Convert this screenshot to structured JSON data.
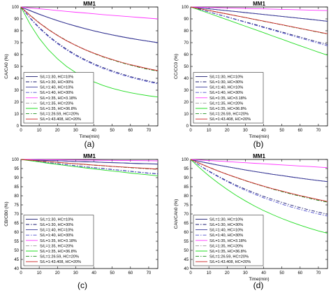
{
  "figure": {
    "panels": [
      "(a)",
      "(b)",
      "(c)",
      "(d)"
    ]
  },
  "chart_data": [
    {
      "type": "line",
      "panel_label": "(a)",
      "title": "MM1",
      "xlabel": "Time(min)",
      "ylabel": "CA/CA0 (%)",
      "xlim": [
        0,
        75
      ],
      "ylim": [
        0,
        100
      ],
      "xticks": [
        0,
        10,
        20,
        30,
        40,
        50,
        60,
        70
      ],
      "yticks": [
        0,
        10,
        20,
        30,
        40,
        50,
        60,
        70,
        80,
        90,
        100
      ],
      "grid": false,
      "legend_position": "lower-left",
      "x": [
        0,
        5,
        10,
        15,
        20,
        25,
        30,
        35,
        40,
        45,
        50,
        55,
        60,
        65,
        70,
        75
      ],
      "series": [
        {
          "name": "S/L=1:30, HC=10%",
          "color": "#1a1a6e",
          "dash": "solid",
          "values": [
            100,
            96.9,
            93.9,
            91.1,
            88.5,
            86.1,
            83.9,
            81.8,
            79.9,
            78.1,
            76.5,
            75,
            73.6,
            72.3,
            71.1,
            70
          ]
        },
        {
          "name": "S/L=1:30, HC=30%",
          "color": "#1a1a6e",
          "dash": "dashdot",
          "values": [
            100,
            90.8,
            82.8,
            75.8,
            69.8,
            64.5,
            59.8,
            55.8,
            52.2,
            49.1,
            46.3,
            43.8,
            41.5,
            39.5,
            37.7,
            36
          ]
        },
        {
          "name": "S/L=1:40, HC=10%",
          "color": "#3a3a9a",
          "dash": "solid",
          "values": [
            100,
            97,
            94,
            91.2,
            88.6,
            86.2,
            84,
            81.9,
            80,
            78.2,
            76.6,
            75.1,
            73.7,
            72.4,
            71.2,
            70
          ]
        },
        {
          "name": "S/L=1:40, HC=30%",
          "color": "#4a4acc",
          "dash": "dashdot",
          "values": [
            100,
            90.4,
            82.2,
            75.2,
            69.1,
            63.8,
            59.1,
            55.1,
            51.5,
            48.3,
            45.5,
            43,
            40.8,
            38.8,
            37,
            35.3
          ]
        },
        {
          "name": "S/L=1:35, HC=3.18%",
          "color": "#ff33ff",
          "dash": "solid",
          "values": [
            100,
            99.2,
            98.5,
            97.8,
            97,
            96.3,
            95.6,
            95,
            94.3,
            93.6,
            93,
            92.4,
            91.8,
            91.2,
            90.6,
            90
          ]
        },
        {
          "name": "S/L=1:35, HC=20%",
          "color": "#999999",
          "dash": "dashdot",
          "values": [
            100,
            93.1,
            86.9,
            81.3,
            76.3,
            71.9,
            67.9,
            64.3,
            61.1,
            58.2,
            55.6,
            53.3,
            51.2,
            49.3,
            47.6,
            46
          ]
        },
        {
          "name": "S/L=1:35, HC=36.8%",
          "color": "#22dd22",
          "dash": "solid",
          "values": [
            100,
            85.5,
            73.7,
            64.1,
            56.4,
            50,
            44.8,
            40.5,
            37,
            34,
            31.6,
            29.6,
            27.9,
            26.5,
            25.3,
            24.3
          ]
        },
        {
          "name": "S/L=1:26.59, HC=20%",
          "color": "#1f8f1f",
          "dash": "dashdot",
          "values": [
            100,
            93,
            86.7,
            81.1,
            76.1,
            71.7,
            67.7,
            64.1,
            60.9,
            58,
            55.5,
            53.2,
            51.1,
            49.2,
            47.5,
            46
          ]
        },
        {
          "name": "S/L=1:43.408, HC=20%",
          "color": "#cc2222",
          "dash": "solid",
          "values": [
            100,
            92.9,
            86.6,
            81,
            76,
            71.6,
            67.7,
            64.2,
            61.1,
            58.3,
            55.8,
            53.5,
            51.5,
            49.7,
            48,
            46.5
          ]
        }
      ]
    },
    {
      "type": "line",
      "panel_label": "(b)",
      "title": "MM1",
      "xlabel": "Time(min)",
      "ylabel": "CC/CC0 (%)",
      "xlim": [
        0,
        75
      ],
      "ylim": [
        0,
        100
      ],
      "xticks": [
        0,
        10,
        20,
        30,
        40,
        50,
        60,
        70
      ],
      "yticks": [
        0,
        10,
        20,
        30,
        40,
        50,
        60,
        70,
        80,
        90,
        100
      ],
      "grid": false,
      "legend_position": "lower-left",
      "x": [
        0,
        5,
        10,
        15,
        20,
        25,
        30,
        35,
        40,
        45,
        50,
        55,
        60,
        65,
        70,
        75
      ],
      "series": [
        {
          "name": "S/L=1:30, HC=10%",
          "color": "#1a1a6e",
          "dash": "solid",
          "values": [
            100,
            99.3,
            98.5,
            97.7,
            96.9,
            96.1,
            95.3,
            94.5,
            93.7,
            92.9,
            92.1,
            91.3,
            90.5,
            89.7,
            88.9,
            88
          ]
        },
        {
          "name": "S/L=1:30, HC=30%",
          "color": "#1a1a6e",
          "dash": "dashdot",
          "values": [
            100,
            98,
            95.9,
            93.8,
            91.7,
            89.6,
            87.5,
            85.4,
            83.2,
            81.1,
            79,
            76.8,
            74.7,
            72.6,
            70.5,
            68.5
          ]
        },
        {
          "name": "S/L=1:40, HC=10%",
          "color": "#3a3a9a",
          "dash": "solid",
          "values": [
            100,
            99.3,
            98.5,
            97.7,
            96.9,
            96.1,
            95.3,
            94.5,
            93.7,
            92.9,
            92.1,
            91.3,
            90.5,
            89.7,
            88.9,
            88
          ]
        },
        {
          "name": "S/L=1:40, HC=30%",
          "color": "#4a4acc",
          "dash": "dashdot",
          "values": [
            100,
            97.9,
            95.8,
            93.6,
            91.5,
            89.3,
            87.1,
            84.9,
            82.7,
            80.5,
            78.3,
            76.1,
            73.9,
            71.7,
            69.5,
            67.3
          ]
        },
        {
          "name": "S/L=1:35, HC=3.18%",
          "color": "#ff33ff",
          "dash": "solid",
          "values": [
            100,
            99.8,
            99.6,
            99.4,
            99.2,
            99,
            98.8,
            98.6,
            98.4,
            98.2,
            98,
            97.8,
            97.6,
            97.4,
            97.2,
            97
          ]
        },
        {
          "name": "S/L=1:35, HC=20%",
          "color": "#999999",
          "dash": "dashdot",
          "values": [
            100,
            98.6,
            97.1,
            95.6,
            94.1,
            92.6,
            91.1,
            89.5,
            88,
            86.5,
            85,
            83.4,
            81.9,
            80.4,
            78.8,
            77.3
          ]
        },
        {
          "name": "S/L=1:35, HC=36.8%",
          "color": "#22dd22",
          "dash": "solid",
          "values": [
            100,
            97.4,
            94.7,
            92,
            89.3,
            86.6,
            83.8,
            81.1,
            78.4,
            75.6,
            72.9,
            70.1,
            67.4,
            64.7,
            62,
            59.5
          ]
        },
        {
          "name": "S/L=1:26.59, HC=20%",
          "color": "#1f8f1f",
          "dash": "dashdot",
          "values": [
            100,
            98.6,
            97.1,
            95.6,
            94.1,
            92.6,
            91.1,
            89.5,
            88,
            86.5,
            85,
            83.4,
            81.9,
            80.4,
            78.8,
            77.3
          ]
        },
        {
          "name": "S/L=1:43.408, HC=20%",
          "color": "#cc2222",
          "dash": "solid",
          "values": [
            100,
            98.6,
            97.1,
            95.6,
            94.1,
            92.6,
            91.1,
            89.6,
            88.1,
            86.6,
            85.1,
            83.6,
            82,
            80.5,
            79,
            77.5
          ]
        }
      ]
    },
    {
      "type": "line",
      "panel_label": "(c)",
      "title": "MM1",
      "xlabel": "",
      "ylabel": "CB/CB0 (%)",
      "xlim": [
        0,
        75
      ],
      "ylim": [
        40,
        100
      ],
      "xticks": [
        0,
        10,
        20,
        30,
        40,
        50,
        60,
        70
      ],
      "yticks": [
        40,
        45,
        50,
        55,
        60,
        65,
        70,
        75,
        80,
        85,
        90,
        95,
        100
      ],
      "grid": false,
      "legend_position": "lower-left",
      "x": [
        0,
        5,
        10,
        15,
        20,
        25,
        30,
        35,
        40,
        45,
        50,
        55,
        60,
        65,
        70,
        75
      ],
      "series": [
        {
          "name": "S/L=1:30, HC=10%",
          "color": "#1a1a6e",
          "dash": "solid",
          "values": [
            100,
            99.8,
            99.6,
            99.4,
            99.3,
            99.1,
            98.9,
            98.7,
            98.6,
            98.4,
            98.2,
            98.1,
            97.9,
            97.7,
            97.6,
            97.4
          ]
        },
        {
          "name": "S/L=1:30, HC=30%",
          "color": "#1a1a6e",
          "dash": "dashdot",
          "values": [
            100,
            99.4,
            98.8,
            98.2,
            97.7,
            97.1,
            96.6,
            96,
            95.5,
            95,
            94.5,
            94,
            93.5,
            93,
            92.5,
            92.1
          ]
        },
        {
          "name": "S/L=1:40, HC=10%",
          "color": "#3a3a9a",
          "dash": "solid",
          "values": [
            100,
            99.8,
            99.6,
            99.4,
            99.3,
            99.1,
            98.9,
            98.8,
            98.6,
            98.4,
            98.3,
            98.1,
            97.9,
            97.8,
            97.6,
            97.5
          ]
        },
        {
          "name": "S/L=1:40, HC=30%",
          "color": "#4a4acc",
          "dash": "dashdot",
          "values": [
            100,
            99.4,
            98.8,
            98.2,
            97.6,
            97.1,
            96.5,
            95.9,
            95.4,
            94.9,
            94.4,
            93.9,
            93.4,
            92.9,
            92.4,
            92
          ]
        },
        {
          "name": "S/L=1:35, HC=3.18%",
          "color": "#ff33ff",
          "dash": "solid",
          "values": [
            100,
            99.95,
            99.9,
            99.85,
            99.8,
            99.75,
            99.7,
            99.65,
            99.6,
            99.55,
            99.5,
            99.45,
            99.4,
            99.35,
            99.3,
            99.2
          ]
        },
        {
          "name": "S/L=1:35, HC=20%",
          "color": "#999999",
          "dash": "dashdot",
          "values": [
            100,
            99.6,
            99.2,
            98.8,
            98.4,
            98,
            97.6,
            97.2,
            96.8,
            96.5,
            96.1,
            95.8,
            95.4,
            95.1,
            94.8,
            94.5
          ]
        },
        {
          "name": "S/L=1:35, HC=36.8%",
          "color": "#22dd22",
          "dash": "solid",
          "values": [
            100,
            99.3,
            98.6,
            97.9,
            97.3,
            96.6,
            96,
            95.4,
            94.8,
            94.2,
            93.6,
            93.1,
            92.5,
            92,
            91.5,
            91
          ]
        },
        {
          "name": "S/L=1:26.59, HC=20%",
          "color": "#1f8f1f",
          "dash": "dashdot",
          "values": [
            100,
            99.6,
            99.2,
            98.8,
            98.4,
            98,
            97.6,
            97.2,
            96.9,
            96.5,
            96.2,
            95.8,
            95.5,
            95.2,
            94.9,
            94.6
          ]
        },
        {
          "name": "S/L=1:43.408, HC=20%",
          "color": "#cc2222",
          "dash": "solid",
          "values": [
            100,
            99.6,
            99.2,
            98.8,
            98.4,
            98,
            97.6,
            97.3,
            96.9,
            96.6,
            96.2,
            95.9,
            95.6,
            95.3,
            95,
            94.7
          ]
        }
      ]
    },
    {
      "type": "line",
      "panel_label": "(d)",
      "title": "MM1",
      "xlabel": "Time(min)",
      "ylabel": "CAh/CAh0 (%)",
      "xlim": [
        0,
        75
      ],
      "ylim": [
        40,
        100
      ],
      "xticks": [
        0,
        10,
        20,
        30,
        40,
        50,
        60,
        70
      ],
      "yticks": [
        40,
        45,
        50,
        55,
        60,
        65,
        70,
        75,
        80,
        85,
        90,
        95,
        100
      ],
      "grid": false,
      "legend_position": "lower-left",
      "x": [
        0,
        5,
        10,
        15,
        20,
        25,
        30,
        35,
        40,
        45,
        50,
        55,
        60,
        65,
        70,
        75
      ],
      "series": [
        {
          "name": "S/L=1:30, HC=10%",
          "color": "#1a1a6e",
          "dash": "solid",
          "values": [
            100,
            98.9,
            97.9,
            96.9,
            96,
            95.1,
            94.2,
            93.4,
            92.6,
            91.8,
            91.1,
            90.4,
            89.7,
            89,
            88.4,
            87.8
          ]
        },
        {
          "name": "S/L=1:30, HC=30%",
          "color": "#1a1a6e",
          "dash": "dashdot",
          "values": [
            100,
            96.7,
            93.6,
            90.8,
            88.2,
            85.8,
            83.6,
            81.6,
            79.7,
            78,
            76.4,
            74.9,
            73.5,
            72.2,
            71,
            69.9
          ]
        },
        {
          "name": "S/L=1:40, HC=10%",
          "color": "#3a3a9a",
          "dash": "solid",
          "values": [
            100,
            98.9,
            97.9,
            96.9,
            96,
            95.1,
            94.2,
            93.4,
            92.6,
            91.8,
            91.1,
            90.4,
            89.7,
            89,
            88.4,
            87.8
          ]
        },
        {
          "name": "S/L=1:40, HC=30%",
          "color": "#4a4acc",
          "dash": "dashdot",
          "values": [
            100,
            96.6,
            93.4,
            90.5,
            87.8,
            85.3,
            83,
            80.9,
            78.9,
            77.1,
            75.4,
            73.9,
            72.5,
            71.2,
            70,
            68.9
          ]
        },
        {
          "name": "S/L=1:35, HC=3.18%",
          "color": "#ff33ff",
          "dash": "solid",
          "values": [
            100,
            99.7,
            99.4,
            99.1,
            98.8,
            98.5,
            98.2,
            97.9,
            97.6,
            97.3,
            97,
            96.7,
            96.4,
            96.1,
            95.8,
            95.5
          ]
        },
        {
          "name": "S/L=1:35, HC=20%",
          "color": "#999999",
          "dash": "dashdot",
          "values": [
            100,
            97.8,
            95.7,
            93.7,
            91.8,
            90,
            88.3,
            86.7,
            85.2,
            83.7,
            82.3,
            81,
            79.8,
            78.6,
            77.5,
            76.5
          ]
        },
        {
          "name": "S/L=1:35, HC=36.8%",
          "color": "#22dd22",
          "dash": "solid",
          "values": [
            100,
            95.3,
            91,
            87.1,
            83.5,
            80.2,
            77.2,
            74.4,
            71.9,
            69.6,
            67.5,
            65.6,
            63.8,
            62.2,
            60.7,
            59.4
          ]
        },
        {
          "name": "S/L=1:26.59, HC=20%",
          "color": "#1f8f1f",
          "dash": "dashdot",
          "values": [
            100,
            97.8,
            95.7,
            93.7,
            91.8,
            90,
            88.3,
            86.7,
            85.2,
            83.7,
            82.3,
            81,
            79.8,
            78.6,
            77.5,
            76.5
          ]
        },
        {
          "name": "S/L=1:43.408, HC=20%",
          "color": "#cc2222",
          "dash": "solid",
          "values": [
            100,
            97.8,
            95.7,
            93.7,
            91.8,
            90.1,
            88.4,
            86.8,
            85.3,
            83.9,
            82.6,
            81.3,
            80.1,
            79,
            77.9,
            76.9
          ]
        }
      ]
    }
  ]
}
